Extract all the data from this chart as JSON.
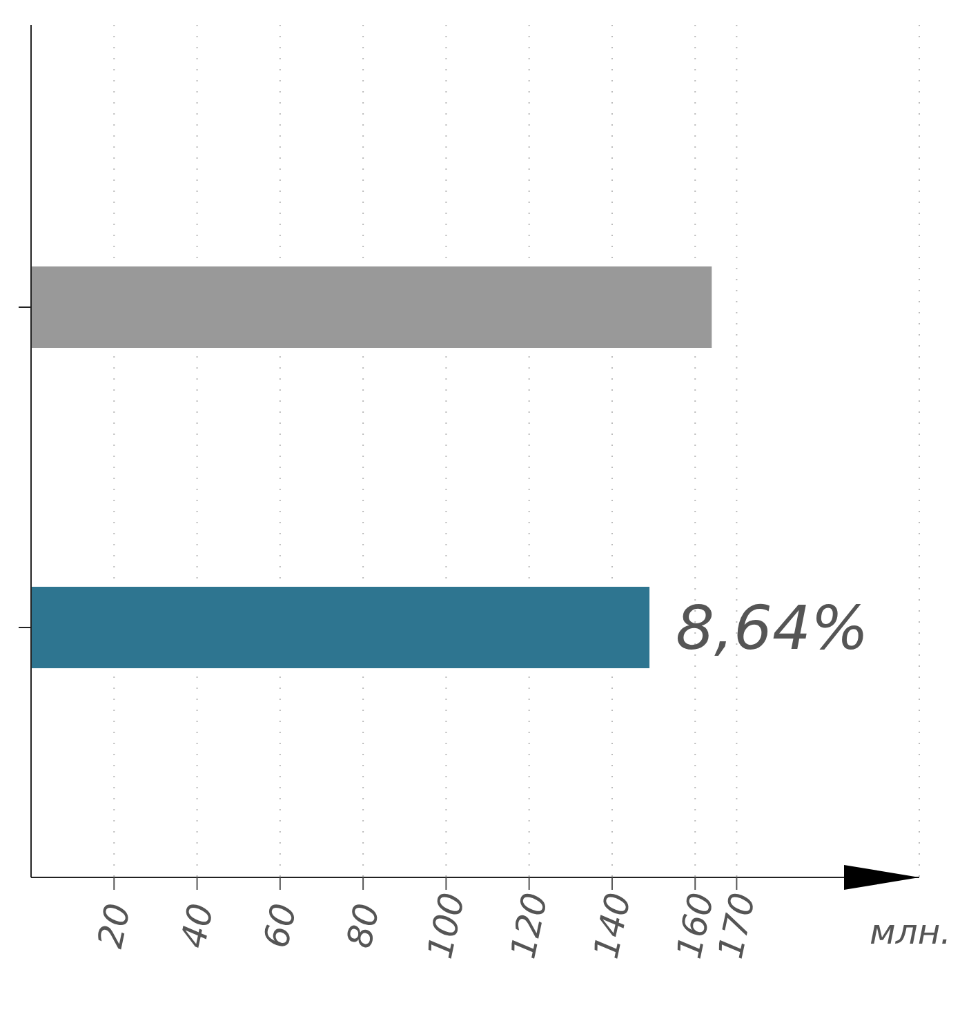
{
  "chart_data": {
    "type": "bar",
    "orientation": "horizontal",
    "categories": [
      null,
      null
    ],
    "values": [
      164,
      149
    ],
    "colors": [
      "#999999",
      "#2e7590"
    ],
    "annotations": [
      {
        "text": "8,64%",
        "x": 149
      }
    ],
    "xlabel": "млн.",
    "xlim": [
      0,
      214
    ],
    "xticks": [
      20,
      40,
      60,
      80,
      100,
      120,
      140,
      160,
      170
    ],
    "grid": "x"
  }
}
